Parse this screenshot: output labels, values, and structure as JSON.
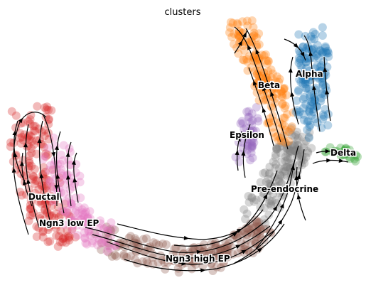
{
  "chart_data": {
    "type": "scatter",
    "title": "clusters",
    "xlabel": "",
    "ylabel": "",
    "grid": false,
    "legend": "on data",
    "streamlines": true,
    "clusters": [
      {
        "name": "Ductal",
        "color": "#d62728"
      },
      {
        "name": "Ngn3 low EP",
        "color": "#e377c2"
      },
      {
        "name": "Ngn3 high EP",
        "color": "#8c564b"
      },
      {
        "name": "Pre-endocrine",
        "color": "#7f7f7f"
      },
      {
        "name": "Beta",
        "color": "#ff7f0e"
      },
      {
        "name": "Alpha",
        "color": "#1f77b4"
      },
      {
        "name": "Epsilon",
        "color": "#9467bd"
      },
      {
        "name": "Delta",
        "color": "#2ca02c"
      }
    ]
  }
}
